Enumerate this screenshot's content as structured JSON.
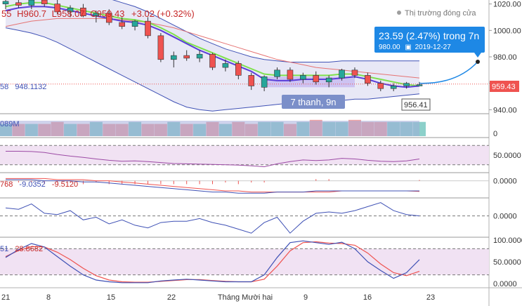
{
  "header": {
    "ohlc_open_fragment": "55",
    "ohlc_high": "H960.7",
    "ohlc_low": "L958.07",
    "ohlc_close": "C959.43",
    "ohlc_change": "+3.02 (+0.32%)",
    "market_status": "Thị trường đóng cửa"
  },
  "projection": {
    "label": "23.59 (2.47%) trong 7n",
    "price": "980.00",
    "date": "2019-12-27"
  },
  "range_box_label": "7 thanh, 9n",
  "labels": {
    "left_price_fragment": "58",
    "left_price_value": "948.1132",
    "low_label": "956.41",
    "last_price": "959.43",
    "volume_fragment": "089M",
    "macd_fragment": "768",
    "macd_v1": "-9.0352",
    "macd_v2": "-9.5120",
    "stoch_fragment": "51",
    "stoch_value": "28.8682"
  },
  "colors": {
    "up": "#26a69a",
    "down": "#ef5350",
    "bb": "#3f51b5",
    "bb_fill": "#e8e8f6",
    "red_line": "#e57373",
    "green_line": "#7ee04d",
    "blue_line": "#5b3fd9",
    "purple": "#9c4aa5",
    "band_fill": "#f1e2f3",
    "projection": "#1e88e5"
  },
  "chart_data": {
    "type": "candlestick",
    "x_ticks": [
      "21",
      "8",
      "15",
      "22",
      "Tháng Mười hai",
      "9",
      "16",
      "23"
    ],
    "price_axis": {
      "ticks": [
        "1020.00",
        "1000.00",
        "980.00",
        "960.00",
        "940.00"
      ],
      "range": [
        937,
        1023
      ]
    },
    "candles": [
      {
        "o": 1020,
        "h": 1024,
        "l": 1016,
        "c": 1022
      },
      {
        "o": 1021,
        "h": 1025,
        "l": 1017,
        "c": 1019
      },
      {
        "o": 1019,
        "h": 1024,
        "l": 1016,
        "c": 1023
      },
      {
        "o": 1023,
        "h": 1026,
        "l": 1018,
        "c": 1020
      },
      {
        "o": 1020,
        "h": 1024,
        "l": 1012,
        "c": 1014
      },
      {
        "o": 1014,
        "h": 1019,
        "l": 1010,
        "c": 1017
      },
      {
        "o": 1017,
        "h": 1020,
        "l": 1010,
        "c": 1011
      },
      {
        "o": 1011,
        "h": 1015,
        "l": 1006,
        "c": 1013
      },
      {
        "o": 1013,
        "h": 1016,
        "l": 1004,
        "c": 1006
      },
      {
        "o": 1006,
        "h": 1010,
        "l": 1001,
        "c": 1003
      },
      {
        "o": 1003,
        "h": 1008,
        "l": 1000,
        "c": 1007
      },
      {
        "o": 1007,
        "h": 1010,
        "l": 994,
        "c": 996
      },
      {
        "o": 996,
        "h": 998,
        "l": 976,
        "c": 978
      },
      {
        "o": 978,
        "h": 984,
        "l": 972,
        "c": 981
      },
      {
        "o": 981,
        "h": 985,
        "l": 977,
        "c": 979
      },
      {
        "o": 979,
        "h": 985,
        "l": 976,
        "c": 982
      },
      {
        "o": 982,
        "h": 983,
        "l": 970,
        "c": 972
      },
      {
        "o": 972,
        "h": 978,
        "l": 969,
        "c": 975
      },
      {
        "o": 975,
        "h": 977,
        "l": 963,
        "c": 966
      },
      {
        "o": 966,
        "h": 968,
        "l": 955,
        "c": 958
      },
      {
        "o": 957,
        "h": 966,
        "l": 954,
        "c": 965
      },
      {
        "o": 965,
        "h": 972,
        "l": 963,
        "c": 970
      },
      {
        "o": 970,
        "h": 972,
        "l": 961,
        "c": 963
      },
      {
        "o": 963,
        "h": 968,
        "l": 960,
        "c": 966
      },
      {
        "o": 966,
        "h": 969,
        "l": 959,
        "c": 961
      },
      {
        "o": 961,
        "h": 966,
        "l": 957,
        "c": 964
      },
      {
        "o": 964,
        "h": 971,
        "l": 962,
        "c": 970
      },
      {
        "o": 970,
        "h": 972,
        "l": 964,
        "c": 966
      },
      {
        "o": 966,
        "h": 968,
        "l": 958,
        "c": 960
      },
      {
        "o": 960,
        "h": 962,
        "l": 954,
        "c": 956
      },
      {
        "o": 956,
        "h": 960,
        "l": 954,
        "c": 958
      },
      {
        "o": 958,
        "h": 961,
        "l": 956,
        "c": 960
      },
      {
        "o": 958,
        "h": 961,
        "l": 958,
        "c": 959
      }
    ],
    "bollinger_upper": [
      1030,
      1031,
      1032,
      1033,
      1033,
      1032,
      1030,
      1027,
      1024,
      1021,
      1018,
      1014,
      1009,
      1004,
      999,
      994,
      990,
      986,
      983,
      980,
      978,
      977,
      976,
      976,
      976,
      976,
      977,
      977,
      977,
      977,
      977,
      977,
      977
    ],
    "bollinger_lower": [
      1002,
      1000,
      998,
      995,
      991,
      986,
      981,
      976,
      971,
      966,
      961,
      956,
      951,
      946,
      942,
      940,
      939,
      940,
      941,
      942,
      943,
      944,
      945,
      945,
      946,
      946,
      947,
      948,
      948,
      949,
      950,
      951,
      952
    ],
    "ma_red": [
      1003,
      1005,
      1007,
      1008,
      1009,
      1009,
      1009,
      1009,
      1009,
      1008,
      1007,
      1006,
      1004,
      1002,
      999,
      996,
      993,
      990,
      987,
      984,
      981,
      978,
      976,
      974,
      972,
      971,
      970,
      969,
      968,
      967,
      966,
      965,
      964
    ],
    "ma_green": [
      1018,
      1020,
      1021,
      1021,
      1019,
      1017,
      1015,
      1013,
      1011,
      1009,
      1008,
      1006,
      1002,
      997,
      991,
      987,
      983,
      979,
      975,
      971,
      967,
      966,
      966,
      966,
      966,
      966,
      967,
      967,
      965,
      963,
      961,
      959,
      958
    ],
    "ma_blue": [
      1015,
      1017,
      1018,
      1018,
      1017,
      1015,
      1013,
      1011,
      1009,
      1007,
      1006,
      1004,
      1000,
      995,
      990,
      985,
      981,
      977,
      973,
      969,
      963,
      962,
      962,
      963,
      963,
      963,
      964,
      965,
      963,
      960,
      958,
      957,
      958
    ],
    "volume": {
      "values": [
        6,
        6,
        6,
        6,
        7,
        6,
        6,
        7,
        6,
        6,
        7,
        6,
        6,
        7,
        6,
        6,
        7,
        6,
        7,
        6,
        7,
        7,
        6,
        7,
        8,
        7,
        7,
        8,
        7,
        7,
        7,
        7,
        7
      ],
      "tick": "0"
    },
    "stoch_rsi_upper": {
      "ticks": [
        "50.0000"
      ],
      "values": [
        62,
        62,
        61,
        58,
        52,
        47,
        43,
        38,
        34,
        31,
        32,
        30,
        27,
        24,
        23,
        22,
        21,
        20,
        19,
        17,
        14,
        23,
        30,
        35,
        33,
        35,
        40,
        38,
        34,
        31,
        30,
        32,
        38
      ]
    },
    "macd": {
      "ticks": [
        "0.0000"
      ],
      "signal": [
        2,
        2,
        2,
        2,
        1,
        1,
        1,
        0,
        0,
        -1,
        -2,
        -3,
        -4,
        -5,
        -6,
        -7,
        -8,
        -9,
        -9,
        -10,
        -10,
        -10,
        -10,
        -10,
        -10,
        -10,
        -9,
        -9,
        -9,
        -9,
        -9,
        -9,
        -9.5
      ],
      "macd_line": [
        1,
        1,
        1,
        0,
        0,
        0,
        -1,
        -1,
        -2,
        -3,
        -4,
        -5,
        -6,
        -7,
        -8,
        -9,
        -10,
        -10,
        -11,
        -11,
        -11,
        -10,
        -10,
        -10,
        -9,
        -9,
        -9,
        -9,
        -9,
        -9,
        -9,
        -9,
        -9
      ]
    },
    "momentum": {
      "ticks": [
        "0.0000"
      ],
      "values": [
        12,
        10,
        18,
        4,
        2,
        8,
        -6,
        -2,
        -12,
        -6,
        -14,
        -18,
        -10,
        -8,
        -8,
        -4,
        -10,
        -14,
        -20,
        -26,
        -10,
        -2,
        -26,
        -8,
        4,
        6,
        4,
        8,
        14,
        20,
        8,
        2,
        0
      ]
    },
    "stochastic": {
      "ticks": [
        "100.0000",
        "50.0000",
        "0.0000"
      ],
      "k": [
        60,
        78,
        92,
        84,
        62,
        40,
        20,
        8,
        4,
        2,
        2,
        2,
        6,
        8,
        10,
        8,
        6,
        4,
        4,
        4,
        20,
        60,
        94,
        98,
        94,
        90,
        95,
        80,
        50,
        30,
        12,
        25,
        55
      ],
      "d": [
        62,
        76,
        85,
        84,
        72,
        55,
        35,
        18,
        8,
        4,
        3,
        3,
        5,
        7,
        9,
        9,
        7,
        5,
        4,
        4,
        10,
        40,
        75,
        94,
        96,
        93,
        92,
        88,
        70,
        45,
        25,
        18,
        28
      ]
    }
  }
}
